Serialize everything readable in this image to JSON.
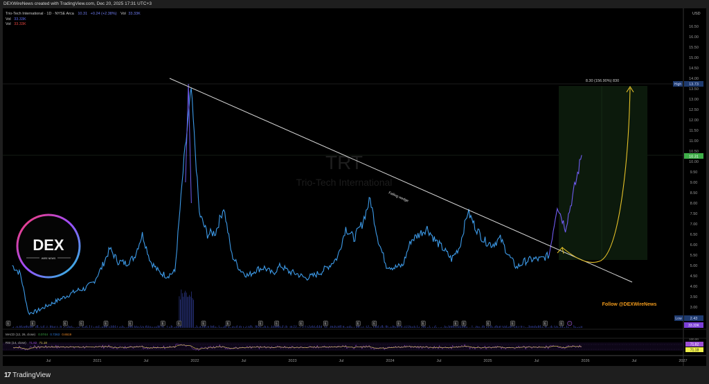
{
  "header": {
    "credit": "DEXWireNews created with TradingView.com, Dec 20, 2025 17:31 UTC+3"
  },
  "legend": {
    "symbol": "Trio-Tech International · 1D · NYSE Arca",
    "price": "10.31",
    "change": "+0.24 (+2.38%)",
    "vol_label": "Vol",
    "vol_value": "33.33K",
    "vol2_label": "Vol",
    "vol2_value": "33.33K",
    "vol3_label": "Vol",
    "vol3_value": "33.33K"
  },
  "watermark": {
    "ticker": "TRT",
    "name": "Trio-Tech International"
  },
  "annotations": {
    "trendline_label": "Falling wedge",
    "measure_label": "8.30 (156.90%) 830",
    "follow": "Follow @DEXWireNews",
    "logo_text": "DEX",
    "logo_subtext": "WIRE NEWS"
  },
  "price_axis": {
    "currency": "USD",
    "high_label": "High",
    "high_value": "13.73",
    "last_value": "10.31",
    "low_label": "Low",
    "low_value": "2.43",
    "volume_value": "33.33K"
  },
  "indicators": {
    "macd": {
      "label": "MACD (12, 26, close)",
      "v1": "0.0744",
      "v2": "0.7263",
      "v3": "0.6519"
    },
    "rsi": {
      "label": "RSI (14, close)",
      "v1": "71.82",
      "v2": "71.18",
      "axis_top": "100.00",
      "badge1": "71.82",
      "badge2": "71.18"
    }
  },
  "colors": {
    "price_line": "#3d9be9",
    "price_line_recent": "#6f5cf0",
    "trendline": "#d9d9d9",
    "curve": "#e6c229",
    "follow": "#f29b1c",
    "last_price_badge": "#3fae49",
    "high_low_badge": "#1e3a6e",
    "rsi": "#9c4fd6",
    "rsi_ma": "#e6d35a"
  },
  "footer": {
    "brand": "TradingView"
  },
  "chart_data": {
    "type": "line",
    "title": "",
    "xlabel": "",
    "ylabel": "USD",
    "ylim": [
      2.2,
      17.0
    ],
    "grid": false,
    "x_tick_labels": [
      "Jul",
      "2021",
      "Jul",
      "2022",
      "Jul",
      "2023",
      "Jul",
      "2024",
      "Jul",
      "2025",
      "Jul",
      "2026",
      "Jul",
      "2027"
    ],
    "y_tick_labels": [
      "16.50",
      "16.00",
      "15.50",
      "15.00",
      "14.50",
      "14.00",
      "13.50",
      "13.00",
      "12.50",
      "12.00",
      "11.50",
      "11.00",
      "10.50",
      "10.00",
      "9.50",
      "9.00",
      "8.50",
      "8.00",
      "7.50",
      "7.00",
      "6.50",
      "6.00",
      "5.50",
      "5.00",
      "4.50",
      "4.00",
      "3.50",
      "3.00"
    ],
    "series": [
      {
        "x": [
          "2020-02",
          "2020-03",
          "2020-04",
          "2020-05",
          "2020-06",
          "2020-07",
          "2020-08",
          "2020-09",
          "2020-10",
          "2020-11",
          "2020-12",
          "2021-01",
          "2021-02",
          "2021-03",
          "2021-04",
          "2021-05",
          "2021-06",
          "2021-07",
          "2021-08",
          "2021-09",
          "2021-10",
          "2021-11",
          "2021-12",
          "2022-01",
          "2022-02",
          "2022-03",
          "2022-04",
          "2022-05",
          "2022-06",
          "2022-07",
          "2022-08",
          "2022-09",
          "2022-10",
          "2022-11",
          "2022-12",
          "2023-01",
          "2023-02",
          "2023-03",
          "2023-04",
          "2023-05",
          "2023-06",
          "2023-07",
          "2023-08",
          "2023-09",
          "2023-10",
          "2023-11",
          "2023-12",
          "2024-01",
          "2024-02",
          "2024-03",
          "2024-04",
          "2024-05",
          "2024-06",
          "2024-07",
          "2024-08",
          "2024-09",
          "2024-10",
          "2024-11",
          "2024-12",
          "2025-01",
          "2025-02",
          "2025-03",
          "2025-04",
          "2025-05",
          "2025-06",
          "2025-07",
          "2025-08",
          "2025-09",
          "2025-10",
          "2025-11",
          "2025-12"
        ],
        "values": [
          5.0,
          4.6,
          2.7,
          2.8,
          3.0,
          3.2,
          3.4,
          3.6,
          3.8,
          3.9,
          4.2,
          4.9,
          5.8,
          5.2,
          5.1,
          5.4,
          6.5,
          5.2,
          4.7,
          4.5,
          4.7,
          9.5,
          13.5,
          7.5,
          6.5,
          6.6,
          7.8,
          5.5,
          4.8,
          4.5,
          4.8,
          4.9,
          4.6,
          5.0,
          4.7,
          4.6,
          4.4,
          4.5,
          4.7,
          5.0,
          5.4,
          6.8,
          6.3,
          7.0,
          8.2,
          6.2,
          5.0,
          4.9,
          5.0,
          6.2,
          6.5,
          6.8,
          6.2,
          5.8,
          5.3,
          5.9,
          7.6,
          6.8,
          6.2,
          6.0,
          6.3,
          5.5,
          4.9,
          5.2,
          5.3,
          5.3,
          5.5,
          7.9,
          6.8,
          8.5,
          10.31
        ]
      }
    ],
    "high": 13.73,
    "low": 2.43,
    "last": 10.31,
    "earnings_marker_label": "E",
    "earnings_dates": [
      "2020-02",
      "2020-05",
      "2020-09",
      "2020-11",
      "2021-02",
      "2021-05",
      "2021-09",
      "2021-11",
      "2022-02",
      "2022-05",
      "2022-09",
      "2022-11",
      "2023-02",
      "2023-05",
      "2023-09",
      "2023-11",
      "2024-02",
      "2024-05",
      "2024-09",
      "2024-10",
      "2025-01",
      "2025-04",
      "2025-08",
      "2025-10"
    ],
    "dividend_marker_date": "2025-11"
  }
}
